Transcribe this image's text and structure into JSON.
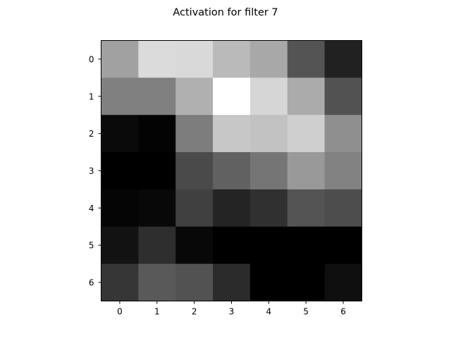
{
  "chart_data": {
    "type": "heatmap",
    "title": "Activation for filter 7",
    "xlabel": "",
    "ylabel": "",
    "x_categories": [
      "0",
      "1",
      "2",
      "3",
      "4",
      "5",
      "6"
    ],
    "y_categories": [
      "0",
      "1",
      "2",
      "3",
      "4",
      "5",
      "6"
    ],
    "colormap": "gray",
    "value_range": [
      0,
      1
    ],
    "grid": false,
    "legend": "none",
    "values": [
      [
        0.63,
        0.86,
        0.85,
        0.73,
        0.66,
        0.33,
        0.13
      ],
      [
        0.5,
        0.5,
        0.69,
        1.0,
        0.84,
        0.67,
        0.32
      ],
      [
        0.04,
        0.01,
        0.49,
        0.78,
        0.76,
        0.81,
        0.56
      ],
      [
        0.0,
        0.0,
        0.29,
        0.38,
        0.46,
        0.6,
        0.51
      ],
      [
        0.02,
        0.03,
        0.25,
        0.14,
        0.19,
        0.33,
        0.3
      ],
      [
        0.07,
        0.18,
        0.03,
        0.0,
        0.0,
        0.0,
        0.0
      ],
      [
        0.21,
        0.35,
        0.32,
        0.17,
        0.0,
        0.0,
        0.06
      ]
    ]
  }
}
